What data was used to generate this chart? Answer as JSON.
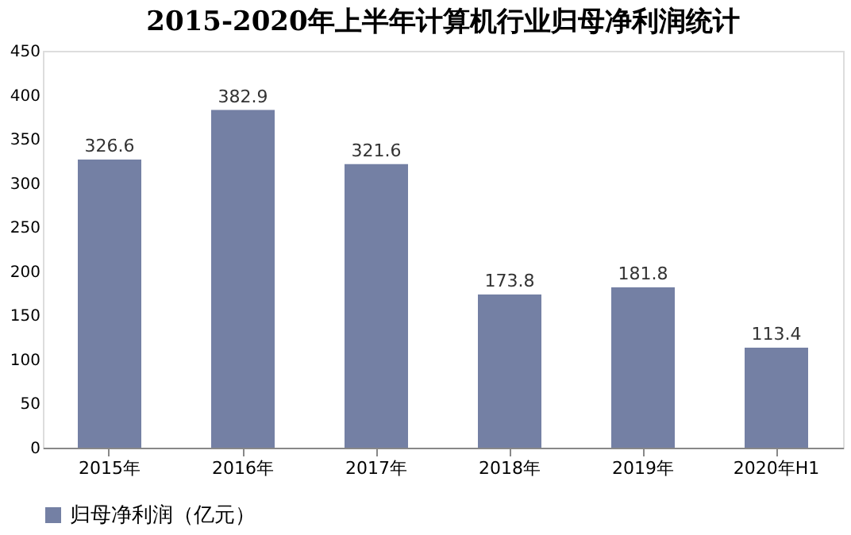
{
  "chart_data": {
    "type": "bar",
    "title": "2015-2020年上半年计算机行业归母净利润统计",
    "categories": [
      "2015年",
      "2016年",
      "2017年",
      "2018年",
      "2019年",
      "2020年H1"
    ],
    "series": [
      {
        "name": "归母净利润（亿元）",
        "color": "#7480a4",
        "values": [
          326.6,
          382.9,
          321.6,
          173.8,
          181.8,
          113.4
        ]
      }
    ],
    "ylim": [
      0,
      450
    ],
    "yticks": [
      0,
      50,
      100,
      150,
      200,
      250,
      300,
      350,
      400,
      450
    ],
    "grid": false,
    "legend": "bottom",
    "data_labels": true
  }
}
